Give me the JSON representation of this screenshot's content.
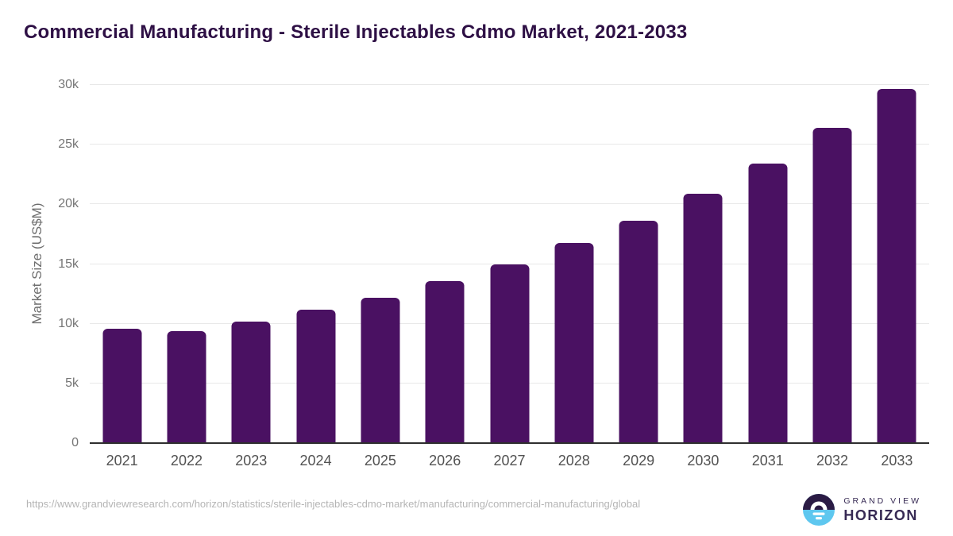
{
  "header": {
    "title": "Commercial Manufacturing - Sterile Injectables Cdmo Market, 2021-2033"
  },
  "chart_data": {
    "type": "bar",
    "title": "Commercial Manufacturing - Sterile Injectables Cdmo Market, 2021-2033",
    "categories": [
      "2021",
      "2022",
      "2023",
      "2024",
      "2025",
      "2026",
      "2027",
      "2028",
      "2029",
      "2030",
      "2031",
      "2032",
      "2033"
    ],
    "values": [
      9600,
      9350,
      10200,
      11150,
      12200,
      13550,
      15000,
      16750,
      18600,
      20900,
      23400,
      26400,
      29700
    ],
    "xlabel": "",
    "ylabel": "Market Size (US$M)",
    "ylim": [
      0,
      30000
    ],
    "yticks": [
      0,
      5000,
      10000,
      15000,
      20000,
      25000,
      30000
    ],
    "ytick_labels": [
      "0",
      "5k",
      "10k",
      "15k",
      "20k",
      "25k",
      "30k"
    ],
    "grid": "horizontal",
    "legend": "none",
    "bar_color": "#4a1162"
  },
  "footer": {
    "source_url": "https://www.grandviewresearch.com/horizon/statistics/sterile-injectables-cdmo-market/manufacturing/commercial-manufacturing/global",
    "logo": {
      "line1": "GRAND VIEW",
      "line2": "HORIZON"
    }
  },
  "colors": {
    "bar": "#4a1162",
    "title_text": "#2e1045",
    "axis_line": "#2f2f2f",
    "gridline": "#e8e8e8",
    "ytick_text": "#757575",
    "xtick_text": "#525252",
    "footer_text": "#b5b5b5",
    "logo_purple": "#2b1b44",
    "logo_blue": "#5ec7ef",
    "logo_text": "#372a54"
  }
}
